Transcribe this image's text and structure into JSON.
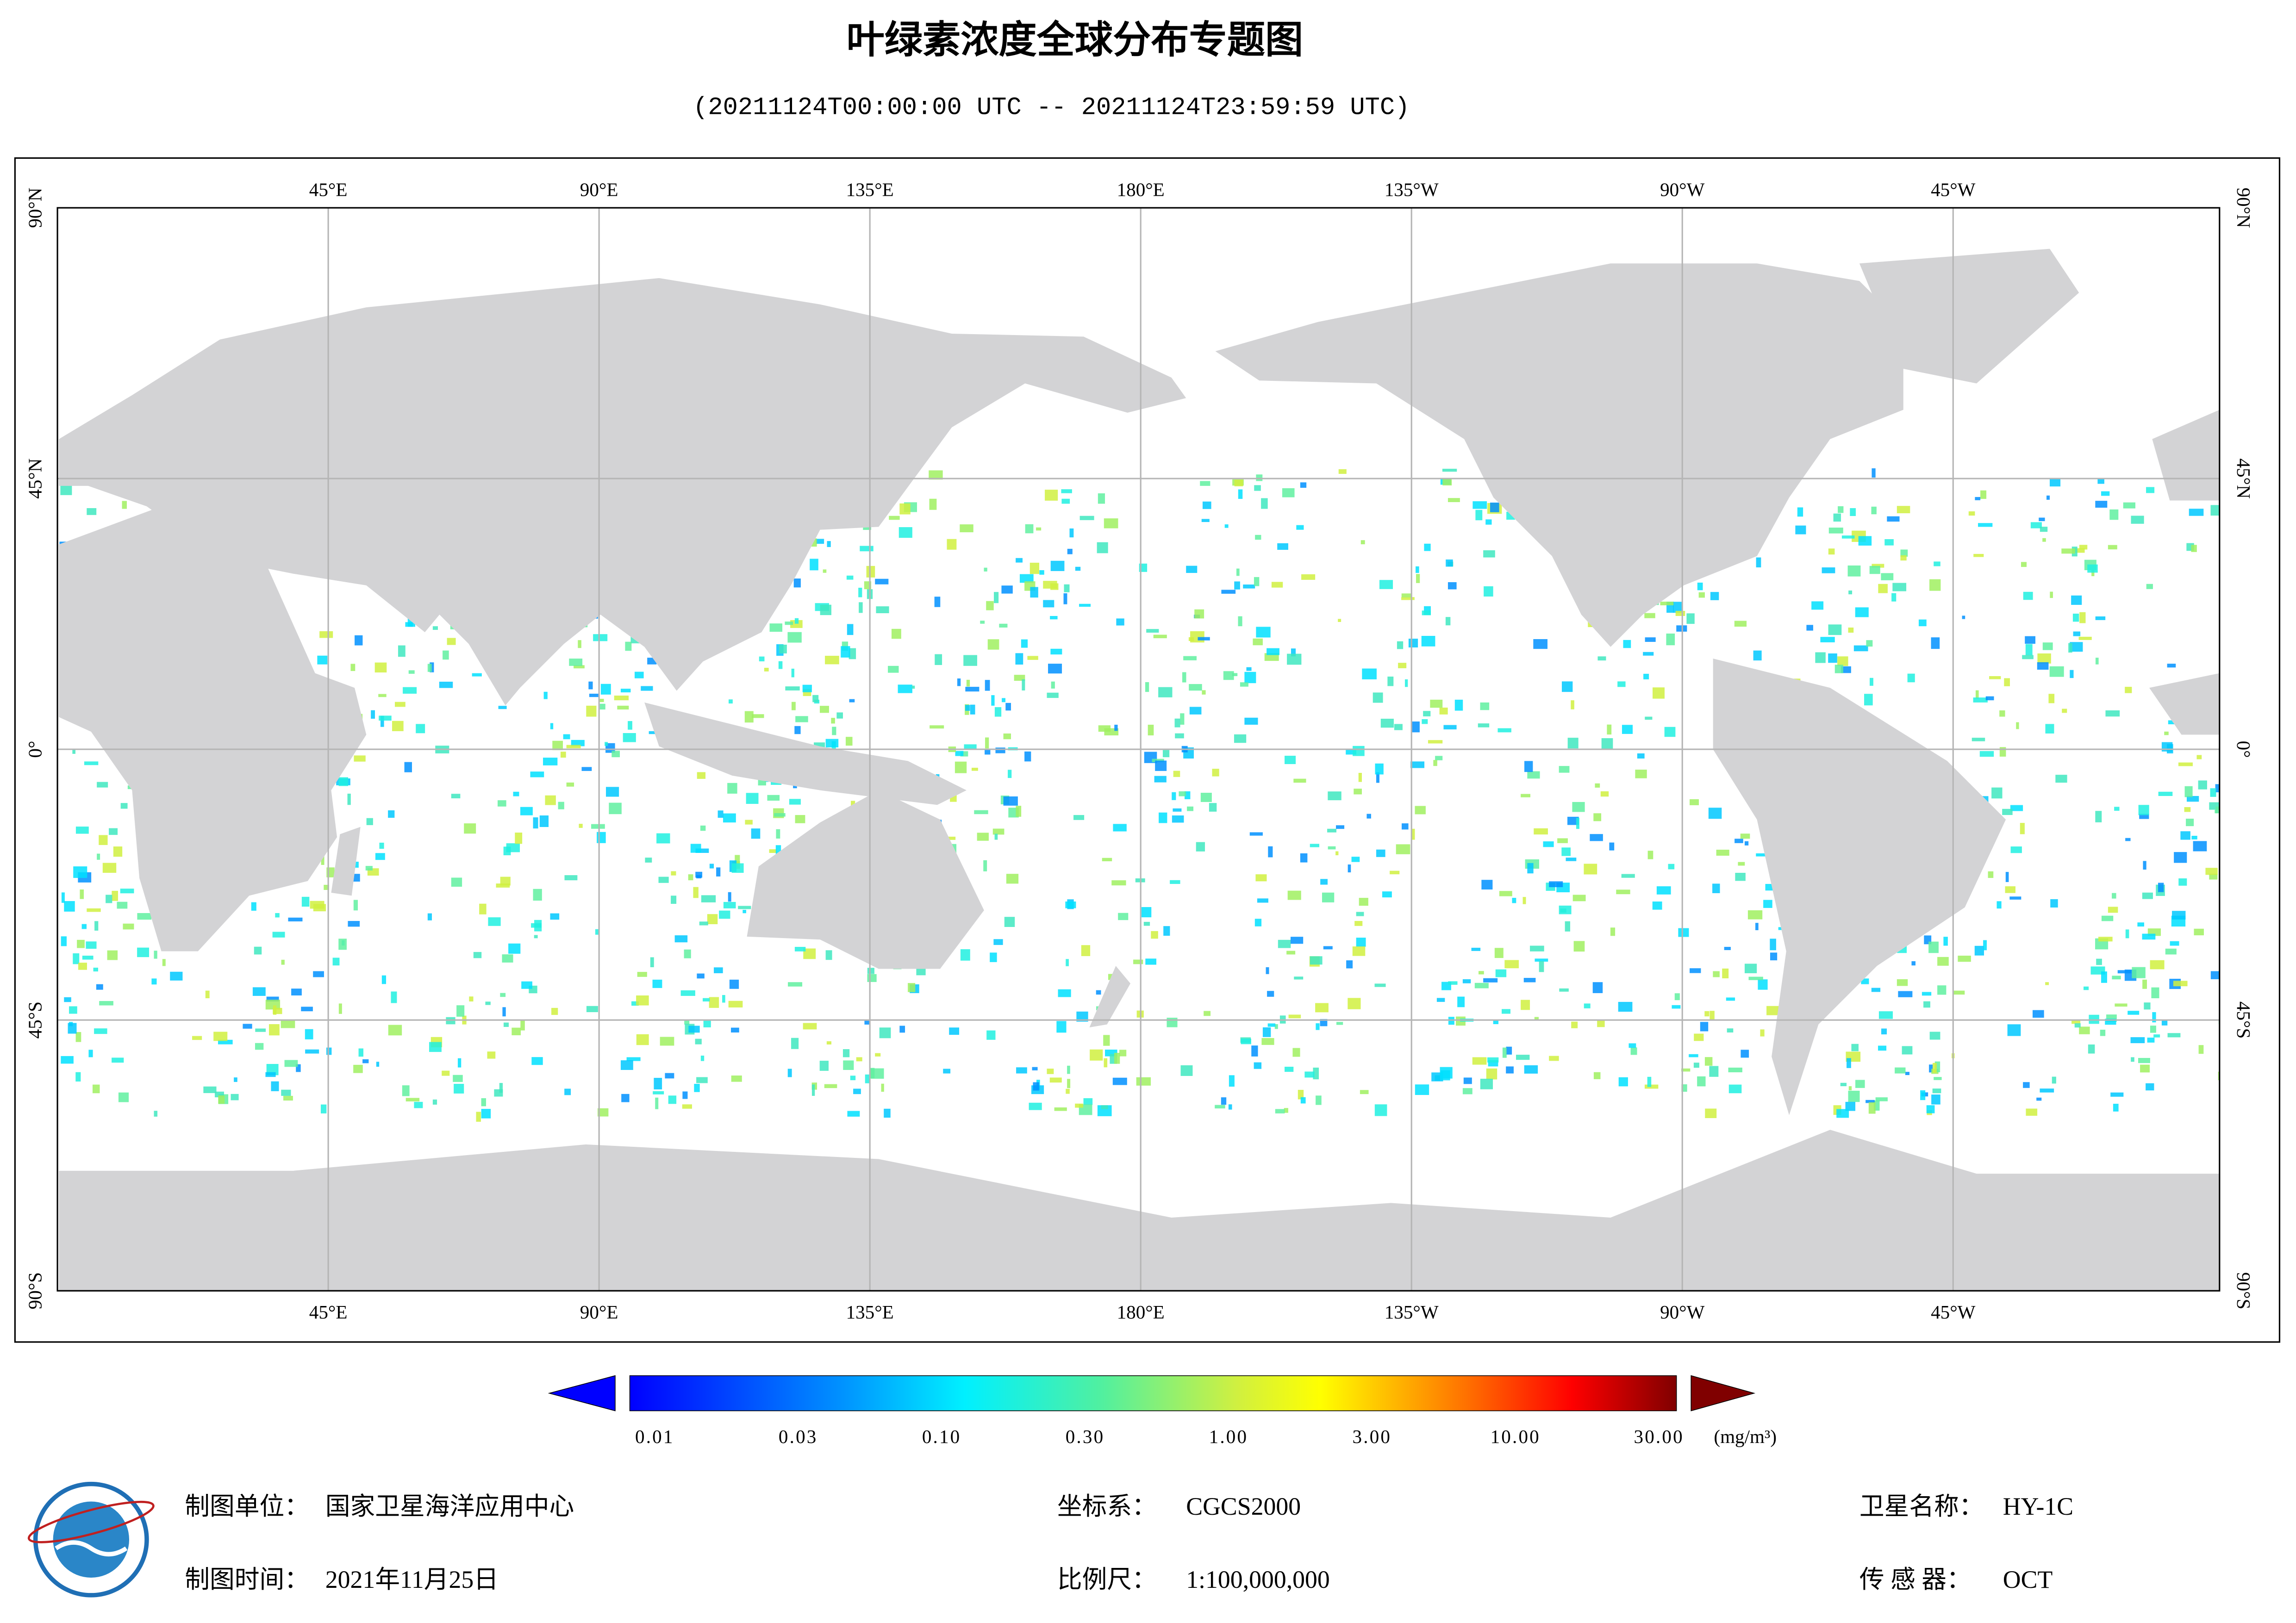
{
  "title": "叶绿素浓度全球分布专题图",
  "subtitle": "(20211124T00:00:00 UTC -- 20211124T23:59:59 UTC)",
  "map": {
    "lon_labels": [
      "45°E",
      "90°E",
      "135°E",
      "180°E",
      "135°W",
      "90°W",
      "45°W"
    ],
    "lat_labels": [
      "90°N",
      "45°N",
      "0°",
      "45°S",
      "90°S"
    ]
  },
  "colorbar": {
    "labels": [
      "0.01",
      "0.03",
      "0.10",
      "0.30",
      "1.00",
      "3.00",
      "10.00",
      "30.00"
    ],
    "unit": "(mg/m³)"
  },
  "footer": {
    "producer_label": "制图单位：",
    "producer": "国家卫星海洋应用中心",
    "crs_label": "坐标系：",
    "crs": "CGCS2000",
    "satellite_label": "卫星名称：",
    "satellite": "HY-1C",
    "date_label": "制图时间：",
    "date": "2021年11月25日",
    "scale_label": "比例尺：",
    "scale": "1:100,000,000",
    "sensor_label": "传 感 器：",
    "sensor": "OCT"
  }
}
